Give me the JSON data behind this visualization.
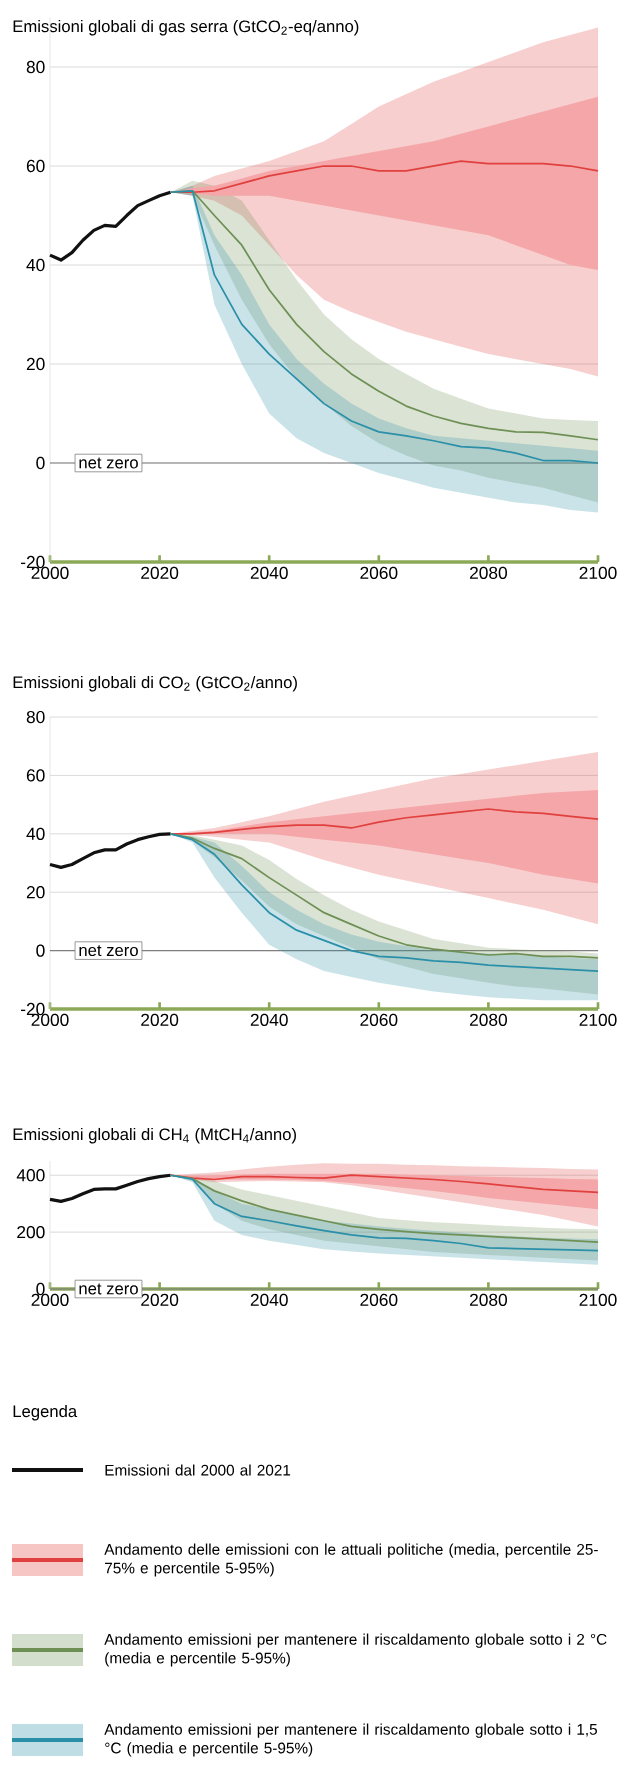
{
  "chart_data": [
    {
      "type": "line",
      "title": "Emissioni globali di gas serra (GtCO$_{2}$-eq/anno)",
      "xlim": [
        2000,
        2100
      ],
      "xticks": [
        2000,
        2020,
        2040,
        2060,
        2080,
        2100
      ],
      "ylim": [
        -20,
        90
      ],
      "yticks": [
        -20,
        0,
        20,
        40,
        60,
        80
      ],
      "grid": "y",
      "ref_lines": [
        {
          "axis": "y",
          "value": 0,
          "label": "net zero",
          "color": "#7f7f7f"
        }
      ],
      "series": [
        {
          "color": "#111111",
          "x": [
            2000,
            2002,
            2004,
            2006,
            2008,
            2010,
            2012,
            2014,
            2016,
            2018,
            2020,
            2022
          ],
          "values": [
            42,
            41,
            42.5,
            45,
            47,
            48,
            47.8,
            50,
            52,
            53,
            54,
            54.7
          ]
        },
        {
          "color": "#e0413f",
          "x": [
            2022,
            2026,
            2030,
            2035,
            2040,
            2045,
            2050,
            2055,
            2060,
            2065,
            2070,
            2075,
            2080,
            2085,
            2090,
            2095,
            2100
          ],
          "values": [
            54.7,
            54.7,
            55,
            56.5,
            58,
            59,
            60,
            60,
            59,
            59,
            60,
            61,
            60.5,
            60.5,
            60.5,
            60,
            59
          ],
          "lower": [
            54.7,
            54,
            53,
            50,
            44,
            38,
            33,
            30.5,
            28.5,
            26.5,
            25,
            23.5,
            22,
            21,
            20,
            19,
            17.5
          ],
          "upper": [
            54.7,
            56,
            58,
            59.5,
            61,
            63,
            65,
            68.5,
            72,
            74.5,
            77,
            79,
            81,
            83,
            85,
            86.5,
            88
          ]
        },
        {
          "color": "#f4a6a8",
          "x": [
            2022,
            2026,
            2030,
            2035,
            2040,
            2045,
            2050,
            2055,
            2060,
            2065,
            2070,
            2075,
            2080,
            2085,
            2090,
            2095,
            2100
          ],
          "values": [
            null,
            null,
            null,
            null,
            null,
            null,
            null,
            null,
            null,
            null,
            null,
            null,
            null,
            null,
            null,
            null,
            null
          ],
          "lower": [
            54.7,
            54.5,
            54,
            54,
            54,
            53,
            52,
            51,
            50,
            49,
            48,
            47,
            46,
            44,
            42,
            40,
            39
          ],
          "upper": [
            54.7,
            55.5,
            56,
            57.5,
            59,
            60,
            61,
            62,
            63,
            64,
            65,
            66.5,
            68,
            69.5,
            71,
            72.5,
            74
          ]
        },
        {
          "color": "#6e9055",
          "x": [
            2022,
            2026,
            2030,
            2035,
            2040,
            2045,
            2050,
            2055,
            2060,
            2065,
            2070,
            2075,
            2080,
            2085,
            2090,
            2095,
            2100
          ],
          "values": [
            54.7,
            55,
            50,
            44,
            35,
            28,
            22.5,
            18,
            14.5,
            11.5,
            9.5,
            8,
            7,
            6.3,
            6.2,
            5.5,
            4.7
          ],
          "lower": [
            54.7,
            54,
            44,
            33,
            24,
            17,
            12,
            7.5,
            4,
            1.5,
            -0.5,
            -1.5,
            -3,
            -4,
            -5,
            -6.5,
            -8
          ],
          "upper": [
            54.7,
            57,
            56,
            53,
            45,
            37,
            30,
            25,
            21,
            18,
            15,
            13,
            11,
            10,
            9,
            8.7,
            8.5
          ]
        },
        {
          "color": "#2a8fa8",
          "x": [
            2022,
            2026,
            2030,
            2035,
            2040,
            2045,
            2050,
            2055,
            2060,
            2065,
            2070,
            2075,
            2080,
            2085,
            2090,
            2095,
            2100
          ],
          "values": [
            54.7,
            55,
            38,
            28,
            22,
            17,
            12,
            8.5,
            6.3,
            5.5,
            4.5,
            3.3,
            3,
            2,
            0.5,
            0.5,
            0
          ],
          "lower": [
            54.7,
            54,
            32,
            20,
            10,
            5,
            2,
            0,
            -2,
            -3.5,
            -5,
            -6,
            -7,
            -8,
            -8.5,
            -9.5,
            -10
          ],
          "upper": [
            54.7,
            56,
            46,
            38,
            28,
            21,
            16,
            12,
            9,
            7,
            5.5,
            5,
            4.5,
            4,
            3.5,
            3,
            2.5
          ]
        }
      ]
    },
    {
      "type": "line",
      "title": "Emissioni globali di CO$_{2}$ (GtCO$_{2}$/anno)",
      "xlim": [
        2000,
        2100
      ],
      "xticks": [
        2000,
        2020,
        2040,
        2060,
        2080,
        2100
      ],
      "ylim": [
        -20,
        80
      ],
      "yticks": [
        -20,
        0,
        20,
        40,
        60,
        80
      ],
      "grid": "y",
      "ref_lines": [
        {
          "axis": "y",
          "value": 0,
          "label": "net zero",
          "color": "#7f7f7f"
        }
      ],
      "series": [
        {
          "color": "#111111",
          "x": [
            2000,
            2002,
            2004,
            2006,
            2008,
            2010,
            2012,
            2014,
            2016,
            2018,
            2020,
            2022
          ],
          "values": [
            29.5,
            28.5,
            29.5,
            31.5,
            33.5,
            34.5,
            34.5,
            36.5,
            38,
            39,
            39.8,
            40
          ]
        },
        {
          "color": "#e0413f",
          "x": [
            2022,
            2026,
            2030,
            2035,
            2040,
            2045,
            2050,
            2055,
            2060,
            2065,
            2070,
            2075,
            2080,
            2085,
            2090,
            2095,
            2100
          ],
          "values": [
            40,
            40,
            40.5,
            41.5,
            42.5,
            43,
            43,
            42,
            44,
            45.5,
            46.5,
            47.5,
            48.5,
            47.5,
            47,
            46,
            45
          ],
          "lower": [
            40,
            39.5,
            39,
            38,
            37,
            34,
            31,
            28.5,
            26,
            24,
            22,
            20,
            18,
            16,
            14,
            11.5,
            9
          ],
          "upper": [
            40,
            41,
            42,
            44,
            46,
            48.5,
            51,
            53,
            55,
            57,
            59,
            60.5,
            62,
            63.5,
            65,
            66.5,
            68
          ]
        },
        {
          "color": "#f4a6a8",
          "x": [
            2022,
            2026,
            2030,
            2035,
            2040,
            2045,
            2050,
            2055,
            2060,
            2065,
            2070,
            2075,
            2080,
            2085,
            2090,
            2095,
            2100
          ],
          "values": [
            null,
            null,
            null,
            null,
            null,
            null,
            null,
            null,
            null,
            null,
            null,
            null,
            null,
            null,
            null,
            null,
            null
          ],
          "lower": [
            40,
            40,
            40,
            40,
            40,
            39,
            38,
            37,
            36,
            34.5,
            33,
            31.5,
            30,
            28,
            26,
            24.5,
            23
          ],
          "upper": [
            40,
            40.5,
            41,
            42.5,
            44,
            45,
            46,
            47,
            48,
            49,
            50,
            51,
            52,
            53,
            54,
            54.5,
            55
          ]
        },
        {
          "color": "#6e9055",
          "x": [
            2022,
            2026,
            2030,
            2035,
            2040,
            2045,
            2050,
            2055,
            2060,
            2065,
            2070,
            2075,
            2080,
            2085,
            2090,
            2095,
            2100
          ],
          "values": [
            40,
            38.5,
            35,
            31.5,
            25,
            19,
            13,
            9,
            5,
            2,
            0.5,
            -0.5,
            -1.5,
            -1,
            -2,
            -2,
            -2.5
          ],
          "lower": [
            40,
            37.5,
            32,
            24,
            15,
            9,
            5,
            1,
            -3,
            -5.5,
            -8,
            -9.5,
            -11,
            -12.3,
            -13,
            -14,
            -15
          ],
          "upper": [
            40,
            39.5,
            38,
            36,
            31,
            24.5,
            19,
            14,
            10,
            7,
            4,
            2.5,
            1,
            0.5,
            0,
            -0.3,
            -1
          ]
        },
        {
          "color": "#2a8fa8",
          "x": [
            2022,
            2026,
            2030,
            2035,
            2040,
            2045,
            2050,
            2055,
            2060,
            2065,
            2070,
            2075,
            2080,
            2085,
            2090,
            2095,
            2100
          ],
          "values": [
            40,
            38,
            33,
            22.5,
            13,
            7,
            3.5,
            0,
            -2,
            -2.5,
            -3.5,
            -4,
            -5,
            -5.5,
            -6,
            -6.5,
            -7
          ],
          "lower": [
            40,
            37,
            25,
            13,
            2,
            -3,
            -7,
            -9,
            -11,
            -12.5,
            -14,
            -15,
            -16,
            -16.5,
            -17,
            -17,
            -17
          ],
          "upper": [
            40,
            39,
            37,
            29,
            20,
            14,
            9,
            5.5,
            3,
            1.5,
            0,
            -0.5,
            -1,
            -1.5,
            -2,
            -2.5,
            -3
          ]
        }
      ]
    },
    {
      "type": "line",
      "title": "Emissioni globali di CH$_{4}$ (MtCH$_{4}$/anno)",
      "xlim": [
        2000,
        2100
      ],
      "xticks": [
        2000,
        2020,
        2040,
        2060,
        2080,
        2100
      ],
      "ylim": [
        0,
        450
      ],
      "yticks": [
        0,
        200,
        400
      ],
      "grid": "y",
      "ref_lines": [
        {
          "axis": "y",
          "value": 0,
          "label": "net zero",
          "color": "#7f7f7f"
        }
      ],
      "legend": "bottom",
      "legend_title": "Legenda",
      "series": [
        {
          "name": "Emissioni dal 2000 al 2021",
          "color": "#111111",
          "x": [
            2000,
            2002,
            2004,
            2006,
            2008,
            2010,
            2012,
            2014,
            2016,
            2018,
            2020,
            2022
          ],
          "values": [
            315,
            308,
            318,
            335,
            350,
            352,
            352,
            365,
            378,
            388,
            395,
            400
          ]
        },
        {
          "name": "Andamento delle emissioni con le attuali politiche (media, percentile 25-75% e percentile 5-95%)",
          "color": "#e0413f",
          "x": [
            2022,
            2026,
            2030,
            2035,
            2040,
            2045,
            2050,
            2055,
            2060,
            2065,
            2070,
            2075,
            2080,
            2085,
            2090,
            2095,
            2100
          ],
          "values": [
            400,
            390,
            385,
            395,
            395,
            392,
            390,
            400,
            395,
            390,
            385,
            378,
            370,
            360,
            350,
            345,
            340
          ],
          "lower": [
            400,
            385,
            375,
            378,
            380,
            378,
            375,
            365,
            350,
            335,
            320,
            305,
            290,
            275,
            260,
            240,
            220
          ],
          "upper": [
            400,
            405,
            410,
            420,
            430,
            437,
            442,
            440,
            440,
            437,
            435,
            432,
            430,
            427,
            425,
            422,
            420
          ]
        },
        {
          "color": "#f4a6a8",
          "x": [
            2022,
            2026,
            2030,
            2035,
            2040,
            2045,
            2050,
            2055,
            2060,
            2065,
            2070,
            2075,
            2080,
            2085,
            2090,
            2095,
            2100
          ],
          "values": [
            null,
            null,
            null,
            null,
            null,
            null,
            null,
            null,
            null,
            null,
            null,
            null,
            null,
            null,
            null,
            null,
            null
          ],
          "lower": [
            400,
            390,
            385,
            385,
            385,
            383,
            380,
            373,
            365,
            355,
            345,
            333,
            320,
            310,
            300,
            290,
            280
          ],
          "upper": [
            400,
            398,
            400,
            403,
            405,
            405,
            405,
            405,
            405,
            402,
            400,
            397,
            395,
            392,
            390,
            387,
            385
          ]
        },
        {
          "name": "Andamento emissioni per mantenere il riscaldamento globale sotto i 2 °C (media e percentile 5-95%)",
          "color": "#6e9055",
          "x": [
            2022,
            2026,
            2030,
            2035,
            2040,
            2045,
            2050,
            2055,
            2060,
            2065,
            2070,
            2075,
            2080,
            2085,
            2090,
            2095,
            2100
          ],
          "values": [
            400,
            388,
            345,
            310,
            280,
            260,
            240,
            220,
            210,
            202,
            195,
            190,
            185,
            180,
            175,
            170,
            165
          ],
          "lower": [
            400,
            380,
            300,
            240,
            210,
            190,
            170,
            160,
            150,
            140,
            130,
            125,
            120,
            115,
            110,
            105,
            100
          ],
          "upper": [
            400,
            396,
            380,
            350,
            330,
            310,
            290,
            270,
            250,
            242,
            235,
            230,
            225,
            220,
            215,
            212,
            210
          ]
        },
        {
          "name": "Andamento emissioni per mantenere il riscaldamento globale sotto i 1,5 °C (media e percentile 5-95%)",
          "color": "#2a8fa8",
          "x": [
            2022,
            2026,
            2030,
            2035,
            2040,
            2045,
            2050,
            2055,
            2060,
            2065,
            2070,
            2075,
            2080,
            2085,
            2090,
            2095,
            2100
          ],
          "values": [
            400,
            386,
            300,
            255,
            240,
            222,
            205,
            190,
            180,
            178,
            170,
            160,
            145,
            142,
            140,
            138,
            135
          ],
          "lower": [
            400,
            375,
            240,
            190,
            170,
            155,
            140,
            132,
            125,
            120,
            115,
            110,
            105,
            100,
            95,
            90,
            85
          ],
          "upper": [
            400,
            395,
            345,
            300,
            280,
            260,
            240,
            230,
            220,
            212,
            205,
            198,
            190,
            185,
            180,
            178,
            175
          ]
        }
      ]
    }
  ]
}
